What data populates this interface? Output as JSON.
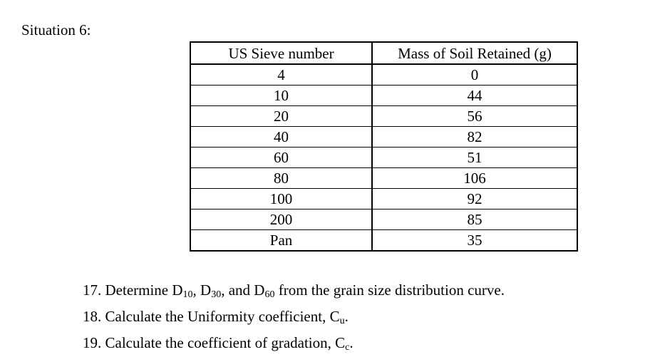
{
  "heading": "Situation 6:",
  "table": {
    "headers": [
      "US Sieve number",
      "Mass of Soil Retained (g)"
    ],
    "rows": [
      [
        "4",
        "0"
      ],
      [
        "10",
        "44"
      ],
      [
        "20",
        "56"
      ],
      [
        "40",
        "82"
      ],
      [
        "60",
        "51"
      ],
      [
        "80",
        "106"
      ],
      [
        "100",
        "92"
      ],
      [
        "200",
        "85"
      ],
      [
        "Pan",
        "35"
      ]
    ]
  },
  "questions": {
    "q17": {
      "number": "17.",
      "pre": "Determine D",
      "sub1": "10",
      "mid1": ", D",
      "sub2": "30",
      "mid2": ", and D",
      "sub3": "60",
      "post": " from the grain size distribution curve."
    },
    "q18": {
      "number": "18.",
      "pre": "Calculate the Uniformity coefficient, C",
      "sub": "u",
      "post": "."
    },
    "q19": {
      "number": "19.",
      "pre": "Calculate the coefficient of gradation, C",
      "sub": "c",
      "post": "."
    }
  }
}
